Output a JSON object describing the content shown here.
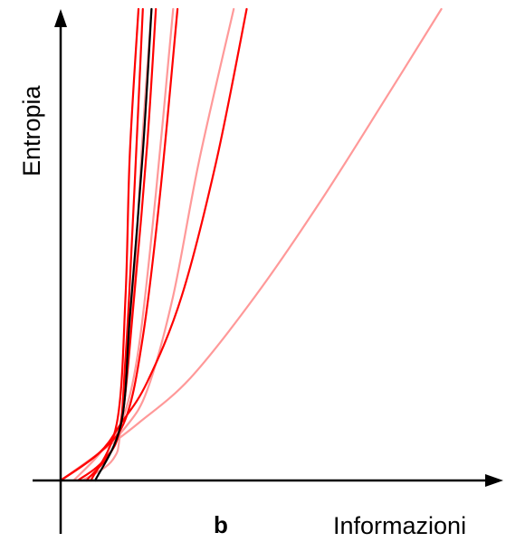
{
  "chart_data": {
    "type": "line",
    "title": "",
    "panel_label": "b",
    "xlabel": "Informazioni",
    "ylabel": "Entropia",
    "ticks": "none",
    "grid": false,
    "legend": "none",
    "axis_color": "#000000",
    "series": [
      {
        "color": "#ff9999",
        "values": [
          [
            0.0,
            0.0
          ],
          [
            0.09,
            0.068
          ],
          [
            0.18,
            0.14
          ],
          [
            0.3,
            0.25
          ],
          [
            0.45,
            0.45
          ],
          [
            0.6,
            0.68
          ],
          [
            0.75,
            0.93
          ],
          [
            0.88,
            1.15
          ]
        ]
      },
      {
        "color": "#ff9999",
        "values": [
          [
            0.0,
            0.0
          ],
          [
            0.09,
            0.068
          ],
          [
            0.15,
            0.13
          ],
          [
            0.2,
            0.22
          ],
          [
            0.26,
            0.45
          ],
          [
            0.32,
            0.78
          ],
          [
            0.4,
            1.15
          ]
        ]
      },
      {
        "color": "#ff9999",
        "values": [
          [
            0.03,
            0.0
          ],
          [
            0.09,
            0.065
          ],
          [
            0.14,
            0.14
          ],
          [
            0.18,
            0.32
          ],
          [
            0.22,
            0.7
          ],
          [
            0.26,
            1.15
          ]
        ]
      },
      {
        "color": "#ff9999",
        "values": [
          [
            0.05,
            0.0
          ],
          [
            0.12,
            0.05
          ],
          [
            0.14,
            0.14
          ],
          [
            0.17,
            0.5
          ],
          [
            0.19,
            0.85
          ],
          [
            0.21,
            1.15
          ]
        ]
      },
      {
        "color": "#ff0000",
        "values": [
          [
            0.0,
            0.0
          ],
          [
            0.09,
            0.068
          ],
          [
            0.14,
            0.14
          ],
          [
            0.2,
            0.24
          ],
          [
            0.28,
            0.45
          ],
          [
            0.36,
            0.78
          ],
          [
            0.43,
            1.15
          ]
        ]
      },
      {
        "color": "#ff0000",
        "values": [
          [
            0.0,
            0.0
          ],
          [
            0.09,
            0.068
          ],
          [
            0.15,
            0.15
          ],
          [
            0.19,
            0.35
          ],
          [
            0.23,
            0.7
          ],
          [
            0.27,
            1.15
          ]
        ]
      },
      {
        "color": "#ff0000",
        "values": [
          [
            0.04,
            0.0
          ],
          [
            0.1,
            0.05
          ],
          [
            0.14,
            0.14
          ],
          [
            0.17,
            0.45
          ],
          [
            0.2,
            0.82
          ],
          [
            0.22,
            1.15
          ]
        ]
      },
      {
        "color": "#ff0000",
        "values": [
          [
            0.06,
            0.0
          ],
          [
            0.13,
            0.1
          ],
          [
            0.15,
            0.3
          ],
          [
            0.17,
            0.7
          ],
          [
            0.19,
            1.15
          ]
        ]
      },
      {
        "color": "#ff0000",
        "values": [
          [
            0.07,
            0.0
          ],
          [
            0.13,
            0.14
          ],
          [
            0.15,
            0.45
          ],
          [
            0.16,
            0.8
          ],
          [
            0.18,
            1.15
          ]
        ]
      },
      {
        "color": "#000000",
        "values": [
          [
            0.08,
            0.0
          ],
          [
            0.14,
            0.14
          ],
          [
            0.16,
            0.4
          ],
          [
            0.19,
            0.8
          ],
          [
            0.21,
            1.15
          ]
        ]
      }
    ],
    "xlim": [
      0,
      1
    ],
    "ylim": [
      0,
      1.15
    ]
  }
}
